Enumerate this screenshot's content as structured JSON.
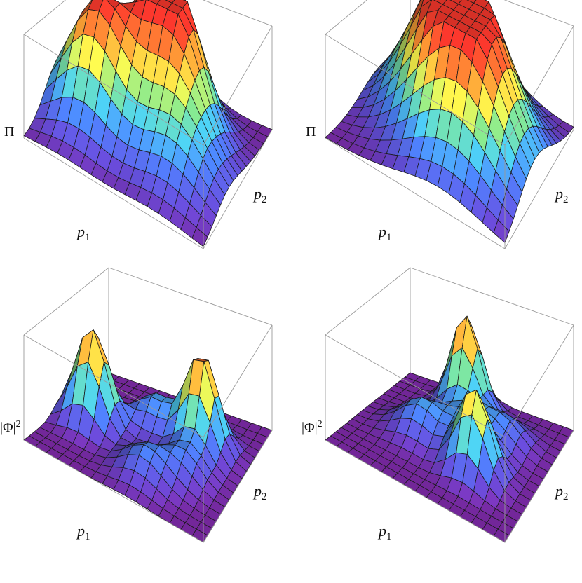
{
  "figure": {
    "panels": [
      {
        "id": "top-left",
        "z_label": "Π",
        "z_sup": "",
        "x_label": "p",
        "x_sub": "1",
        "y_label": "p",
        "y_sub": "2",
        "surface": "four-lobe",
        "peaks": [
          [
            -0.55,
            -0.15,
            1.0,
            0.34
          ],
          [
            0.2,
            0.25,
            0.85,
            0.3
          ],
          [
            -0.15,
            0.55,
            0.7,
            0.3
          ],
          [
            0.45,
            -0.3,
            0.45,
            0.35
          ]
        ]
      },
      {
        "id": "top-right",
        "z_label": "Π",
        "z_sup": "",
        "x_label": "p",
        "x_sub": "1",
        "y_label": "p",
        "y_sub": "2",
        "surface": "two-ridge",
        "peaks": [
          [
            -0.2,
            0.35,
            1.0,
            0.45
          ],
          [
            0.3,
            -0.15,
            0.95,
            0.45
          ]
        ]
      },
      {
        "id": "bottom-left",
        "z_label": "|Φ|",
        "z_sup": "2",
        "x_label": "p",
        "x_sub": "1",
        "y_label": "p",
        "y_sub": "2",
        "surface": "two-peaks-with-bumps",
        "peaks": [
          [
            -0.65,
            -0.1,
            1.0,
            0.18
          ],
          [
            0.45,
            0.3,
            1.0,
            0.18
          ],
          [
            -0.1,
            0.3,
            0.35,
            0.2
          ],
          [
            0.15,
            -0.5,
            0.3,
            0.22
          ],
          [
            0.5,
            -0.2,
            0.25,
            0.18
          ]
        ]
      },
      {
        "id": "bottom-right",
        "z_label": "|Φ|",
        "z_sup": "2",
        "x_label": "p",
        "x_sub": "1",
        "y_label": "p",
        "y_sub": "2",
        "surface": "two-peaks-with-bumps",
        "peaks": [
          [
            -0.15,
            0.65,
            1.0,
            0.17
          ],
          [
            0.35,
            -0.25,
            0.85,
            0.18
          ],
          [
            -0.35,
            -0.05,
            0.35,
            0.22
          ],
          [
            0.1,
            0.2,
            0.3,
            0.2
          ],
          [
            0.45,
            0.4,
            0.25,
            0.2
          ]
        ]
      }
    ]
  }
}
